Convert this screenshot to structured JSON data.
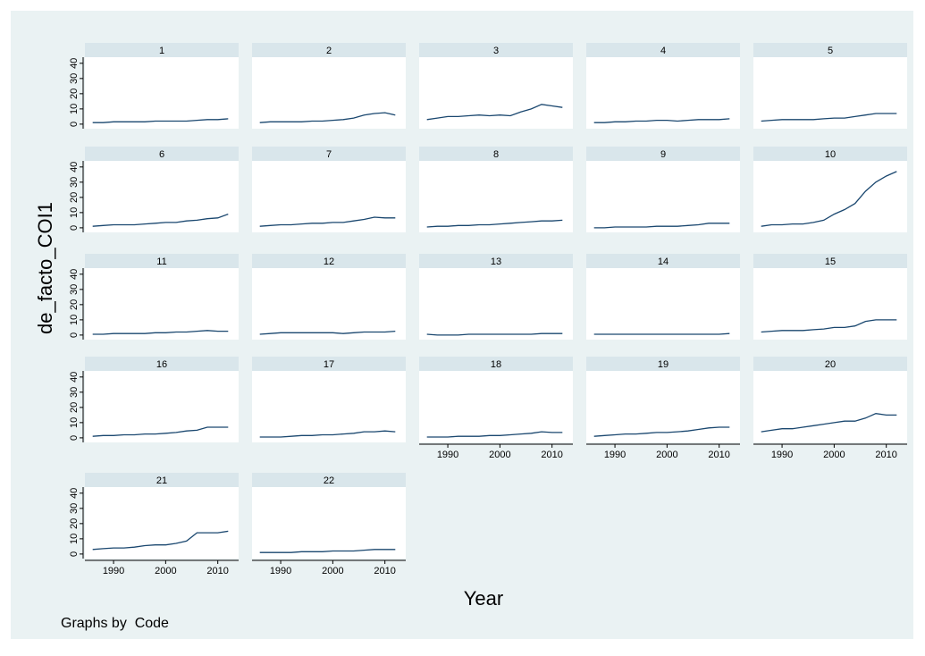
{
  "chart_data": {
    "type": "line",
    "y_title": "de_facto_COI1",
    "x_title": "Year",
    "note": "Graphs by  Code",
    "color": "#1a476f",
    "grid": false,
    "x": [
      1986,
      1988,
      1990,
      1992,
      1994,
      1996,
      1998,
      2000,
      2002,
      2004,
      2006,
      2008,
      2010,
      2012
    ],
    "xlim": [
      1984.5,
      2014
    ],
    "xticks": [
      1990,
      2000,
      2010
    ],
    "ylim": [
      -3,
      44
    ],
    "yticks": [
      0,
      10,
      20,
      30,
      40
    ],
    "series": [
      {
        "name": "1",
        "values": [
          1,
          1,
          1.5,
          1.5,
          1.5,
          1.5,
          2,
          2,
          2,
          2,
          2.5,
          3,
          3,
          3.5
        ]
      },
      {
        "name": "2",
        "values": [
          1,
          1.5,
          1.5,
          1.5,
          1.5,
          2,
          2,
          2.5,
          3,
          4,
          6,
          7,
          7.5,
          6
        ]
      },
      {
        "name": "3",
        "values": [
          3,
          4,
          5,
          5,
          5.5,
          6,
          5.5,
          6,
          5.5,
          8,
          10,
          13,
          12,
          11
        ]
      },
      {
        "name": "4",
        "values": [
          1,
          1,
          1.5,
          1.5,
          2,
          2,
          2.5,
          2.5,
          2,
          2.5,
          3,
          3,
          3,
          3.5
        ]
      },
      {
        "name": "5",
        "values": [
          2,
          2.5,
          3,
          3,
          3,
          3,
          3.5,
          4,
          4,
          5,
          6,
          7,
          7,
          7
        ]
      },
      {
        "name": "6",
        "values": [
          1,
          1.5,
          2,
          2,
          2,
          2.5,
          3,
          3.5,
          3.5,
          4.5,
          5,
          6,
          6.5,
          9
        ]
      },
      {
        "name": "7",
        "values": [
          1,
          1.5,
          2,
          2,
          2.5,
          3,
          3,
          3.5,
          3.5,
          4.5,
          5.5,
          7,
          6.5,
          6.5
        ]
      },
      {
        "name": "8",
        "values": [
          0.5,
          1,
          1,
          1.5,
          1.5,
          2,
          2,
          2.5,
          3,
          3.5,
          4,
          4.5,
          4.5,
          5
        ]
      },
      {
        "name": "9",
        "values": [
          0,
          0,
          0.5,
          0.5,
          0.5,
          0.5,
          1,
          1,
          1,
          1.5,
          2,
          3,
          3,
          3
        ]
      },
      {
        "name": "10",
        "values": [
          1,
          2,
          2,
          2.5,
          2.5,
          3.5,
          5,
          9,
          12,
          16,
          24,
          30,
          34,
          37
        ]
      },
      {
        "name": "11",
        "values": [
          0.5,
          0.5,
          1,
          1,
          1,
          1,
          1.5,
          1.5,
          2,
          2,
          2.5,
          3,
          2.5,
          2.5
        ]
      },
      {
        "name": "12",
        "values": [
          0.5,
          1,
          1.5,
          1.5,
          1.5,
          1.5,
          1.5,
          1.5,
          1,
          1.5,
          2,
          2,
          2,
          2.5
        ]
      },
      {
        "name": "13",
        "values": [
          0.5,
          0,
          0,
          0,
          0.5,
          0.5,
          0.5,
          0.5,
          0.5,
          0.5,
          0.5,
          1,
          1,
          1
        ]
      },
      {
        "name": "14",
        "values": [
          0.5,
          0.5,
          0.5,
          0.5,
          0.5,
          0.5,
          0.5,
          0.5,
          0.5,
          0.5,
          0.5,
          0.5,
          0.5,
          1
        ]
      },
      {
        "name": "15",
        "values": [
          2,
          2.5,
          3,
          3,
          3,
          3.5,
          4,
          5,
          5,
          6,
          9,
          10,
          10,
          10
        ]
      },
      {
        "name": "16",
        "values": [
          1,
          1.5,
          1.5,
          2,
          2,
          2.5,
          2.5,
          3,
          3.5,
          4.5,
          5,
          7,
          7,
          7
        ]
      },
      {
        "name": "17",
        "values": [
          0.5,
          0.5,
          0.5,
          1,
          1.5,
          1.5,
          2,
          2,
          2.5,
          3,
          4,
          4,
          4.5,
          4
        ]
      },
      {
        "name": "18",
        "values": [
          0.5,
          0.5,
          0.5,
          1,
          1,
          1,
          1.5,
          1.5,
          2,
          2.5,
          3,
          4,
          3.5,
          3.5
        ]
      },
      {
        "name": "19",
        "values": [
          1,
          1.5,
          2,
          2.5,
          2.5,
          3,
          3.5,
          3.5,
          4,
          4.5,
          5.5,
          6.5,
          7,
          7
        ]
      },
      {
        "name": "20",
        "values": [
          4,
          5,
          6,
          6,
          7,
          8,
          9,
          10,
          11,
          11,
          13,
          16,
          15,
          15
        ]
      },
      {
        "name": "21",
        "values": [
          3,
          3.5,
          4,
          4,
          4.5,
          5.5,
          6,
          6,
          7,
          8.5,
          14,
          14,
          14,
          15
        ]
      },
      {
        "name": "22",
        "values": [
          1,
          1,
          1,
          1,
          1.5,
          1.5,
          1.5,
          2,
          2,
          2,
          2.5,
          3,
          3,
          3
        ]
      }
    ]
  }
}
